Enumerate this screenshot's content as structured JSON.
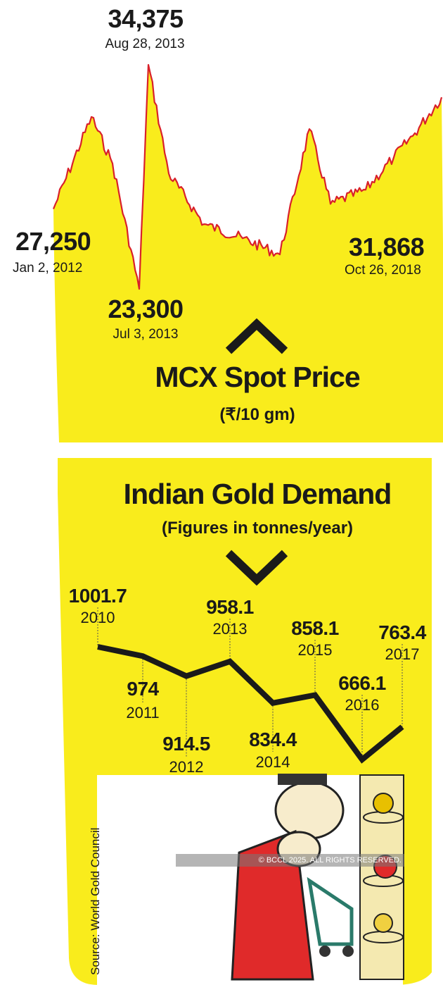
{
  "chart_data": [
    {
      "type": "line",
      "title": "MCX Spot Price",
      "subtitle": "(₹/10 gm)",
      "series": [
        {
          "x": [
            "Jan 2, 2012",
            "Jul 3, 2013",
            "Aug 28, 2013",
            "Oct 26, 2018"
          ],
          "values": [
            27250,
            23300,
            34375,
            31868
          ]
        }
      ],
      "annotations": [
        {
          "value": "27,250",
          "date": "Jan 2, 2012"
        },
        {
          "value": "23,300",
          "date": "Jul 3, 2013"
        },
        {
          "value": "34,375",
          "date": "Aug 28, 2013"
        },
        {
          "value": "31,868",
          "date": "Oct 26, 2018"
        }
      ],
      "colors": {
        "line": "#d9202a",
        "fill": "#f9ec1c"
      }
    },
    {
      "type": "line",
      "title": "Indian Gold Demand",
      "subtitle": "(Figures in tonnes/year)",
      "categories": [
        "2010",
        "2011",
        "2012",
        "2013",
        "2014",
        "2015",
        "2016",
        "2017"
      ],
      "values": [
        1001.7,
        974,
        914.5,
        958.1,
        834.4,
        858.1,
        666.1,
        763.4
      ],
      "labels": [
        "1001.7",
        "974",
        "914.5",
        "958.1",
        "834.4",
        "858.1",
        "666.1",
        "763.4"
      ],
      "colors": {
        "line": "#1a1a1a",
        "fill": "#f9ec1c"
      }
    }
  ],
  "source": "Source: World Gold Council",
  "copyright": "© BCCL 2025. ALL RIGHTS RESERVED."
}
